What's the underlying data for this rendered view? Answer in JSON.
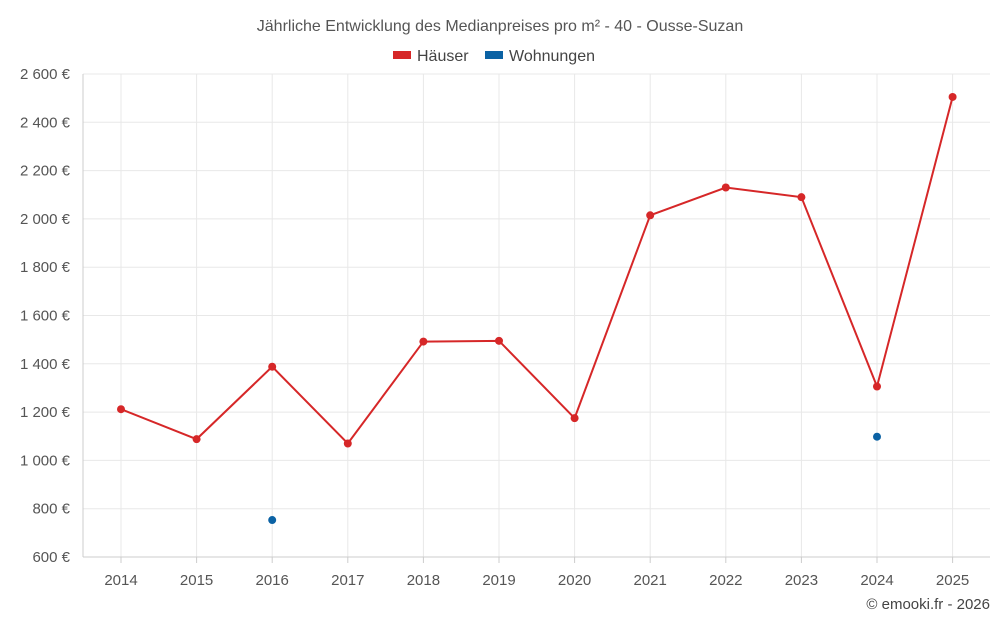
{
  "chart_data": {
    "type": "line",
    "title": "Jährliche Entwicklung des Medianpreises pro m² - 40 - Ousse-Suzan",
    "categories": [
      "2014",
      "2015",
      "2016",
      "2017",
      "2018",
      "2019",
      "2020",
      "2021",
      "2022",
      "2023",
      "2024",
      "2025"
    ],
    "series": [
      {
        "name": "Häuser",
        "color": "#d62728",
        "values": [
          1212,
          1088,
          1388,
          1070,
          1492,
          1495,
          1175,
          2015,
          2130,
          2090,
          1306,
          2505
        ]
      },
      {
        "name": "Wohnungen",
        "color": "#0b62a4",
        "values": [
          null,
          null,
          753,
          null,
          null,
          null,
          null,
          null,
          null,
          null,
          1098,
          null
        ]
      }
    ],
    "ylim": [
      600,
      2600
    ],
    "yticks": [
      600,
      800,
      1000,
      1200,
      1400,
      1600,
      1800,
      2000,
      2200,
      2400,
      2600
    ],
    "ytick_labels": [
      "600 €",
      "800 €",
      "1 000 €",
      "1 200 €",
      "1 400 €",
      "1 600 €",
      "1 800 €",
      "2 000 €",
      "2 200 €",
      "2 400 €",
      "2 600 €"
    ],
    "xlabel": "",
    "ylabel": "",
    "legend_position": "top-center",
    "grid": true
  },
  "credit": "© emooki.fr - 2026"
}
